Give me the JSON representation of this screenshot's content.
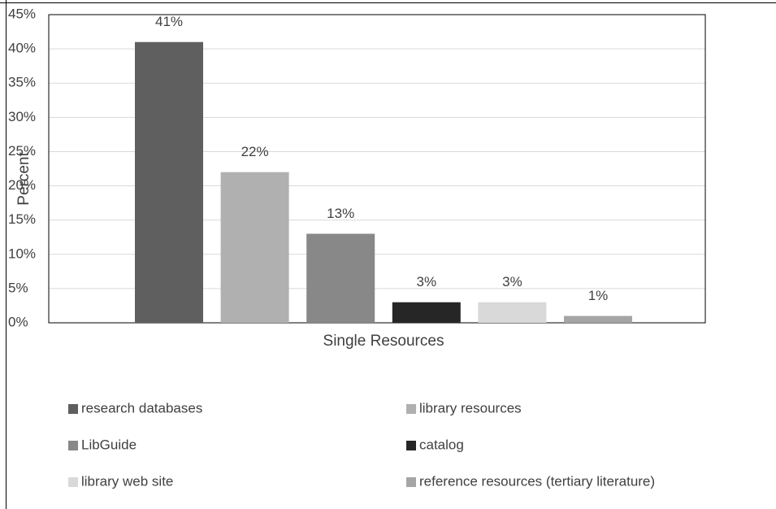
{
  "chart_data": {
    "type": "bar",
    "x_label": "Single Resources",
    "y_label": "Percent",
    "categories": [
      null
    ],
    "series": [
      {
        "name": "research databases",
        "color": "#5f5f5f",
        "values": [
          41
        ],
        "value_labels": [
          "41%"
        ]
      },
      {
        "name": "library resources",
        "color": "#b0b0b0",
        "values": [
          22
        ],
        "value_labels": [
          "22%"
        ]
      },
      {
        "name": "LibGuide",
        "color": "#888888",
        "values": [
          13
        ],
        "value_labels": [
          "13%"
        ]
      },
      {
        "name": "catalog",
        "color": "#262626",
        "values": [
          3
        ],
        "value_labels": [
          "3%"
        ]
      },
      {
        "name": "library web site",
        "color": "#d9d9d9",
        "values": [
          3
        ],
        "value_labels": [
          "3%"
        ]
      },
      {
        "name": "reference resources (tertiary literature)",
        "color": "#a5a5a5",
        "values": [
          1
        ],
        "value_labels": [
          "1%"
        ]
      }
    ],
    "ylim": [
      0,
      45
    ],
    "yticks": [
      {
        "value": 0,
        "label": "0%"
      },
      {
        "value": 5,
        "label": "5%"
      },
      {
        "value": 10,
        "label": "10%"
      },
      {
        "value": 15,
        "label": "15%"
      },
      {
        "value": 20,
        "label": "20%"
      },
      {
        "value": 25,
        "label": "25%"
      },
      {
        "value": 30,
        "label": "30%"
      },
      {
        "value": 35,
        "label": "35%"
      },
      {
        "value": 40,
        "label": "40%"
      },
      {
        "value": 45,
        "label": "45%"
      }
    ],
    "grid": true,
    "legend": "bottom"
  }
}
